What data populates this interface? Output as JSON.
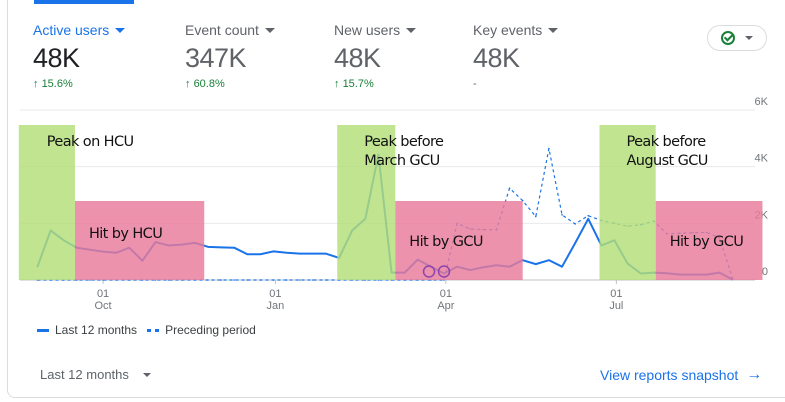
{
  "metrics": [
    {
      "label": "Active users",
      "value": "48K",
      "delta": "15.6%",
      "active": true
    },
    {
      "label": "Event count",
      "value": "347K",
      "delta": "60.8%"
    },
    {
      "label": "New users",
      "value": "48K",
      "delta": "15.7%"
    },
    {
      "label": "Key events",
      "value": "48K",
      "delta": "-"
    }
  ],
  "status_icon": "check-circle-icon",
  "colors": {
    "accent": "#1a73e8",
    "positive": "#188038",
    "peak_highlight": "#b3de78",
    "hit_highlight": "#e97a9a",
    "marker": "#8e44ad"
  },
  "chart_data": {
    "type": "line",
    "y_ticks": [
      "0",
      "2K",
      "4K",
      "6K"
    ],
    "ylim": [
      0,
      6000
    ],
    "x_ticks": [
      {
        "date": "2023-10-01",
        "day": "01",
        "month": "Oct"
      },
      {
        "date": "2024-01-01",
        "day": "01",
        "month": "Jan"
      },
      {
        "date": "2024-04-01",
        "day": "01",
        "month": "Apr"
      },
      {
        "date": "2024-07-01",
        "day": "01",
        "month": "Jul"
      }
    ],
    "grid": true,
    "legend_position": "bottom-left",
    "x_start": "2023-08-27",
    "x_step_days": 7,
    "series": [
      {
        "name": "Last 12 months",
        "style": "solid",
        "values": [
          470,
          1750,
          1400,
          1140,
          1070,
          1000,
          960,
          1140,
          680,
          1340,
          1220,
          1250,
          1310,
          1170,
          1150,
          1140,
          910,
          910,
          1010,
          960,
          930,
          930,
          930,
          780,
          1750,
          2160,
          4430,
          260,
          260,
          720,
          470,
          230,
          470,
          350,
          450,
          520,
          470,
          700,
          560,
          700,
          470,
          1300,
          2160,
          1220,
          1400,
          580,
          230,
          260,
          240,
          190,
          190,
          190,
          260,
          20
        ]
      },
      {
        "name": "Preceding period",
        "style": "dashed",
        "values": [
          0,
          0,
          0,
          0,
          0,
          0,
          0,
          0,
          0,
          0,
          0,
          0,
          0,
          0,
          0,
          0,
          0,
          0,
          0,
          0,
          0,
          0,
          0,
          0,
          0,
          0,
          0,
          0,
          0,
          0,
          0,
          0,
          2000,
          1800,
          1780,
          1770,
          3240,
          2800,
          2240,
          4640,
          2300,
          1980,
          2270,
          2100,
          2000,
          1900,
          1950,
          2080,
          1630,
          1650,
          1670,
          1680,
          1500,
          60
        ]
      }
    ],
    "annotations": [
      {
        "kind": "peak",
        "text": [
          "Peak on HCU"
        ],
        "from": "2023-08-17",
        "to": "2023-09-16"
      },
      {
        "kind": "hit",
        "text": [
          "Hit by HCU"
        ],
        "from": "2023-09-16",
        "to": "2023-11-24"
      },
      {
        "kind": "peak",
        "text": [
          "Peak before",
          "March GCU"
        ],
        "from": "2024-02-03",
        "to": "2024-03-05"
      },
      {
        "kind": "hit",
        "text": [
          "Hit by GCU"
        ],
        "from": "2024-03-05",
        "to": "2024-05-12"
      },
      {
        "kind": "peak",
        "text": [
          "Peak before",
          "August GCU"
        ],
        "from": "2024-06-22",
        "to": "2024-07-22"
      },
      {
        "kind": "hit",
        "text": [
          "Hit by GCU"
        ],
        "from": "2024-07-22",
        "to": "2024-09-17"
      }
    ],
    "markers": [
      {
        "date": "2024-03-23",
        "value": 300
      },
      {
        "date": "2024-03-31",
        "value": 300
      }
    ]
  },
  "footer": {
    "range_label": "Last 12 months",
    "snapshot_label": "View reports snapshot"
  }
}
